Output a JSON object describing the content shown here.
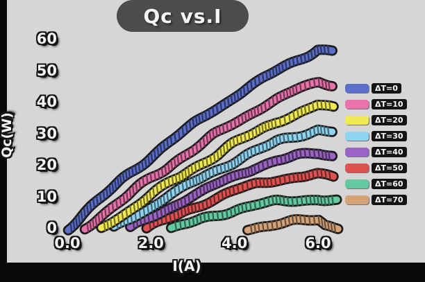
{
  "chart_data": {
    "type": "line",
    "title": "Qc vs.I",
    "xlabel": "I(A)",
    "ylabel": "Qc(W)",
    "xlim": [
      0,
      6.6
    ],
    "ylim": [
      0,
      60
    ],
    "grid": false,
    "legend_position": "right",
    "xticks": {
      "values": [
        0,
        2,
        4,
        6
      ],
      "labels": [
        "0.0",
        "2.0",
        "4.0",
        "6.0"
      ]
    },
    "yticks": {
      "values": [
        0,
        10,
        20,
        30,
        40,
        50,
        60
      ],
      "labels": [
        "0",
        "10",
        "20",
        "30",
        "40",
        "50",
        "60"
      ]
    },
    "colors": {
      "figure_background": "#d6d6d6",
      "frame": "#0a0a0a",
      "title_bubble": "#4c4c4c",
      "label_text": "#f4f4f4",
      "line_outline": "#1b1b1b"
    },
    "series": [
      {
        "name": "ΔT=0",
        "color": "#5b6ec9",
        "points": [
          [
            0,
            0
          ],
          [
            0.5,
            6
          ],
          [
            1,
            12
          ],
          [
            1.5,
            17.5
          ],
          [
            2,
            23
          ],
          [
            2.5,
            28
          ],
          [
            3,
            33
          ],
          [
            3.5,
            37.5
          ],
          [
            4,
            42
          ],
          [
            4.5,
            46
          ],
          [
            5,
            50
          ],
          [
            5.5,
            53.5
          ],
          [
            6,
            57
          ],
          [
            6.35,
            56.2
          ]
        ]
      },
      {
        "name": "ΔT=10",
        "color": "#e873ab",
        "points": [
          [
            0.4,
            0
          ],
          [
            1,
            6
          ],
          [
            1.5,
            11
          ],
          [
            2,
            16
          ],
          [
            2.5,
            20.5
          ],
          [
            3,
            25
          ],
          [
            3.5,
            29.5
          ],
          [
            4,
            33.5
          ],
          [
            4.5,
            37.5
          ],
          [
            5,
            41
          ],
          [
            5.5,
            44
          ],
          [
            6,
            46.5
          ],
          [
            6.35,
            45.8
          ]
        ]
      },
      {
        "name": "ΔT=20",
        "color": "#f2ea54",
        "points": [
          [
            0.8,
            0
          ],
          [
            1.5,
            6
          ],
          [
            2,
            10.5
          ],
          [
            2.5,
            15
          ],
          [
            3,
            19
          ],
          [
            3.5,
            23
          ],
          [
            4,
            27
          ],
          [
            4.5,
            30.5
          ],
          [
            5,
            34
          ],
          [
            5.5,
            36.5
          ],
          [
            6,
            39
          ],
          [
            6.35,
            38.2
          ]
        ]
      },
      {
        "name": "ΔT=30",
        "color": "#8fd5f2",
        "points": [
          [
            1.1,
            0
          ],
          [
            2,
            7
          ],
          [
            2.5,
            11
          ],
          [
            3,
            14.5
          ],
          [
            3.5,
            18
          ],
          [
            4,
            21.5
          ],
          [
            4.5,
            24.5
          ],
          [
            5,
            27.5
          ],
          [
            5.5,
            29.5
          ],
          [
            6,
            31.5
          ],
          [
            6.35,
            30.8
          ]
        ]
      },
      {
        "name": "ΔT=40",
        "color": "#9a63c4",
        "points": [
          [
            1.5,
            0
          ],
          [
            2.5,
            7
          ],
          [
            3,
            10.5
          ],
          [
            3.5,
            13.5
          ],
          [
            4,
            16.5
          ],
          [
            4.5,
            19.5
          ],
          [
            5,
            21.5
          ],
          [
            5.5,
            23
          ],
          [
            6,
            24
          ],
          [
            6.35,
            23.3
          ]
        ]
      },
      {
        "name": "ΔT=50",
        "color": "#e05252",
        "points": [
          [
            1.9,
            0
          ],
          [
            3,
            6.5
          ],
          [
            3.5,
            9.5
          ],
          [
            4,
            12
          ],
          [
            4.5,
            14
          ],
          [
            5,
            15.5
          ],
          [
            5.5,
            16.5
          ],
          [
            6,
            17
          ],
          [
            6.35,
            16.3
          ]
        ]
      },
      {
        "name": "ΔT=60",
        "color": "#63c9a0",
        "points": [
          [
            2.5,
            0
          ],
          [
            3.5,
            4
          ],
          [
            4,
            6
          ],
          [
            4.5,
            7.5
          ],
          [
            5,
            8.5
          ],
          [
            5.5,
            9
          ],
          [
            6,
            9.5
          ],
          [
            6.45,
            8.8
          ]
        ]
      },
      {
        "name": "ΔT=70",
        "color": "#d4a378",
        "points": [
          [
            4.3,
            0
          ],
          [
            5,
            1.5
          ],
          [
            5.5,
            2.3
          ],
          [
            6,
            2.8
          ],
          [
            6.15,
            1.2
          ],
          [
            6.5,
            0.5
          ]
        ]
      }
    ]
  }
}
